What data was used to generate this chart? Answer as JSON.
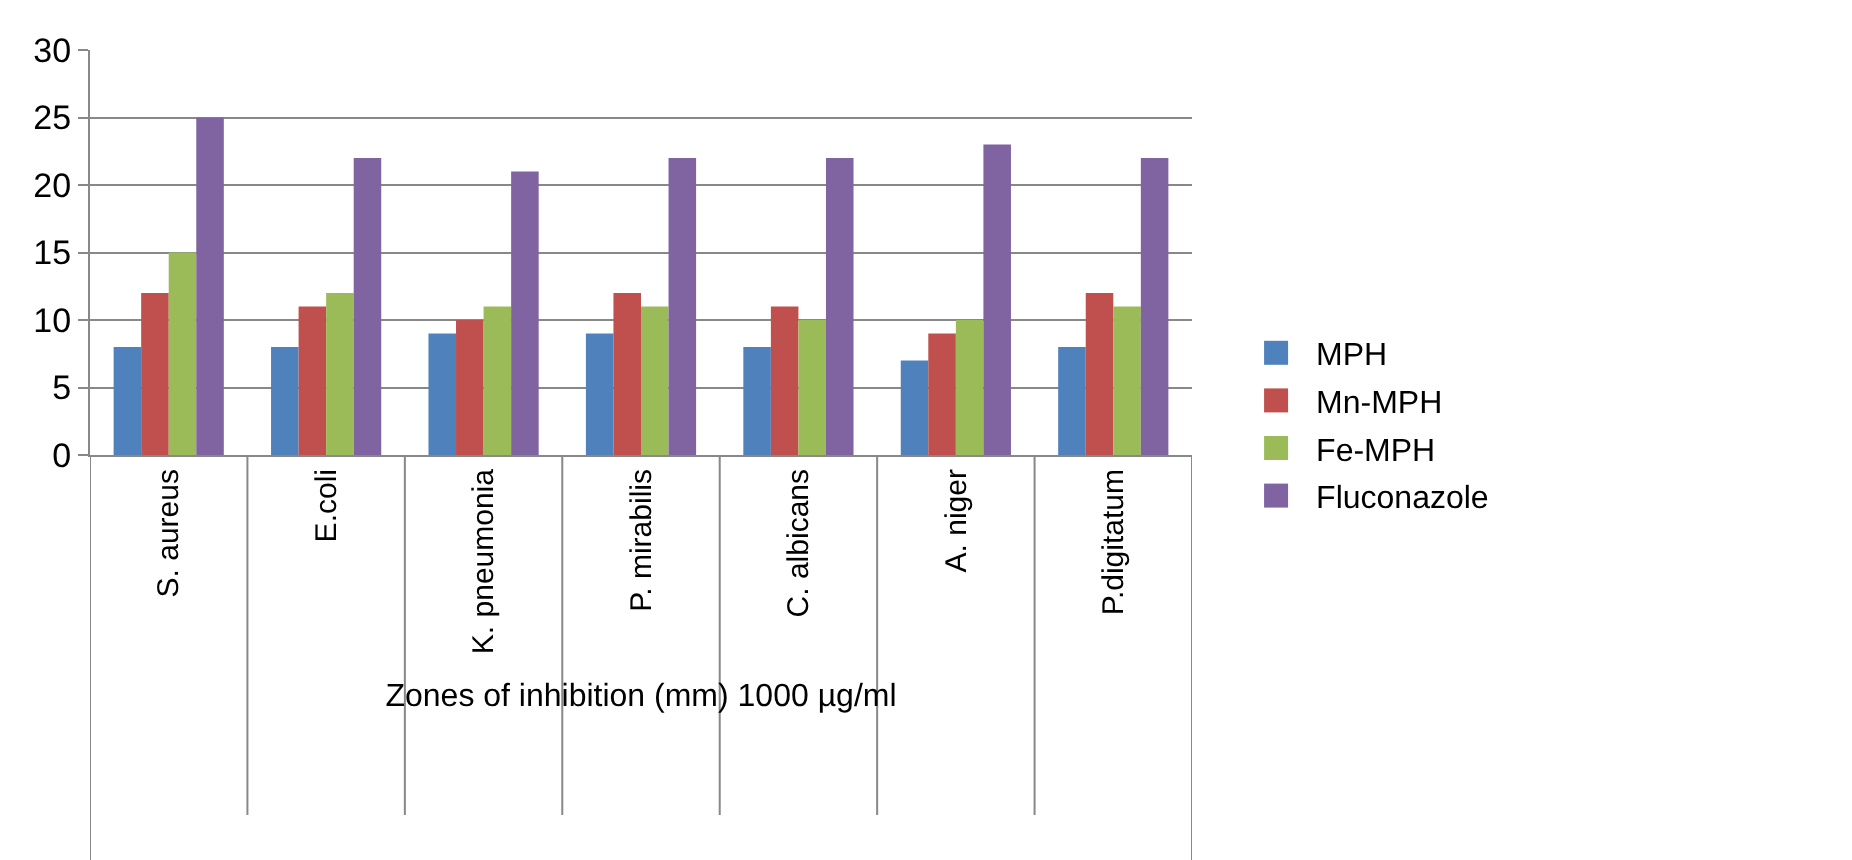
{
  "chart_data": {
    "type": "bar",
    "xlabel": "Zones of inhibition (mm) 1000 µg/ml",
    "categories": [
      "S. aureus",
      "E.coli",
      "K. pneumonia",
      "P. mirabilis",
      "C. albicans",
      "A. niger",
      "P.digitatum"
    ],
    "series": [
      {
        "name": "MPH",
        "color": "#4f81bd",
        "values": [
          8,
          8,
          9,
          9,
          8,
          7,
          8
        ]
      },
      {
        "name": "Mn-MPH",
        "color": "#c0504d",
        "values": [
          12,
          11,
          10,
          12,
          11,
          9,
          12
        ]
      },
      {
        "name": "Fe-MPH",
        "color": "#9bbb59",
        "values": [
          15,
          12,
          11,
          11,
          10,
          10,
          11
        ]
      },
      {
        "name": "Fluconazole",
        "color": "#8064a2",
        "values": [
          25,
          22,
          21,
          22,
          22,
          23,
          22
        ]
      }
    ],
    "ylim": [
      0,
      30
    ],
    "yticks": [
      0,
      5,
      10,
      15,
      20,
      25,
      30
    ],
    "grid": "y",
    "legend": "right"
  }
}
